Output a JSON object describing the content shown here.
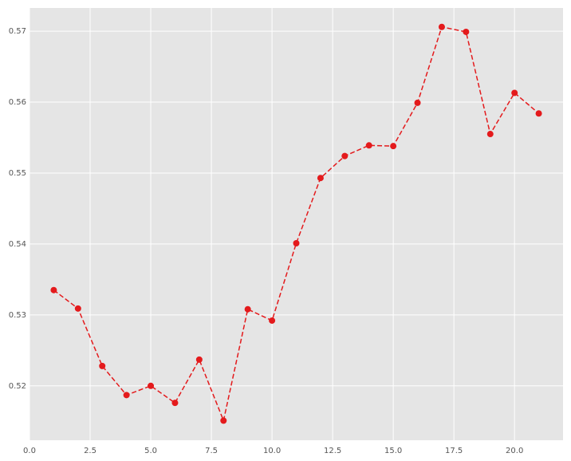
{
  "chart_data": {
    "type": "line",
    "x": [
      1,
      2,
      3,
      4,
      5,
      6,
      7,
      8,
      9,
      10,
      11,
      12,
      13,
      14,
      15,
      16,
      17,
      18,
      19,
      20,
      21
    ],
    "series": [
      {
        "color": "#e41a1c",
        "values": [
          0.5335,
          0.5309,
          0.5228,
          0.5187,
          0.52,
          0.5176,
          0.5237,
          0.5151,
          0.5308,
          0.5292,
          0.5401,
          0.5493,
          0.5524,
          0.5539,
          0.5538,
          0.5599,
          0.5706,
          0.5699,
          0.5555,
          0.5613,
          0.5584
        ]
      }
    ],
    "xlim": [
      0,
      22
    ],
    "xticks": [
      {
        "value": 0,
        "label": "0.0"
      },
      2.5,
      {
        "value": 5,
        "label": "5.0"
      },
      7.5,
      {
        "value": 10,
        "label": "10.0"
      },
      12.5,
      {
        "value": 15,
        "label": "15.0"
      },
      17.5,
      {
        "value": 20,
        "label": "20.0"
      }
    ],
    "ylim": [
      0.51233,
      0.57327
    ],
    "yticks": [
      0.52,
      0.53,
      0.54,
      0.55,
      0.56,
      0.57
    ],
    "grid": true
  }
}
